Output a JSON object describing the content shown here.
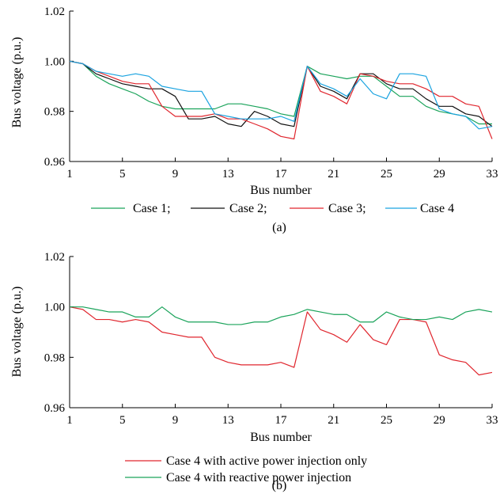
{
  "chart_data": [
    {
      "type": "line",
      "panel_label": "(a)",
      "xlabel": "Bus number",
      "ylabel": "Bus voltage (p.u.)",
      "xlim": [
        1,
        33
      ],
      "ylim": [
        0.96,
        1.02
      ],
      "xticks": [
        1,
        5,
        9,
        13,
        17,
        21,
        25,
        29,
        33
      ],
      "yticks": [
        0.96,
        0.98,
        1.0,
        1.02
      ],
      "ytick_labels": [
        "0.96",
        "0.98",
        "1.00",
        "1.02"
      ],
      "grid": false,
      "legend_position": "bottom",
      "x": [
        1,
        2,
        3,
        4,
        5,
        6,
        7,
        8,
        9,
        10,
        11,
        12,
        13,
        14,
        15,
        16,
        17,
        18,
        19,
        20,
        21,
        22,
        23,
        24,
        25,
        26,
        27,
        28,
        29,
        30,
        31,
        32,
        33
      ],
      "series": [
        {
          "name": "Case 1;",
          "color": "#1aa35a",
          "values": [
            1.0,
            0.999,
            0.994,
            0.991,
            0.989,
            0.987,
            0.984,
            0.982,
            0.981,
            0.981,
            0.981,
            0.981,
            0.983,
            0.983,
            0.982,
            0.981,
            0.979,
            0.978,
            0.998,
            0.995,
            0.994,
            0.993,
            0.994,
            0.994,
            0.99,
            0.986,
            0.986,
            0.982,
            0.98,
            0.979,
            0.978,
            0.975,
            0.975
          ]
        },
        {
          "name": "Case 2;",
          "color": "#111111",
          "values": [
            1.0,
            0.999,
            0.995,
            0.993,
            0.991,
            0.99,
            0.989,
            0.989,
            0.986,
            0.977,
            0.977,
            0.978,
            0.975,
            0.974,
            0.98,
            0.978,
            0.975,
            0.974,
            0.998,
            0.99,
            0.988,
            0.985,
            0.995,
            0.995,
            0.991,
            0.989,
            0.989,
            0.985,
            0.982,
            0.982,
            0.979,
            0.978,
            0.974
          ]
        },
        {
          "name": "Case 3;",
          "color": "#e0262e",
          "values": [
            1.0,
            0.999,
            0.996,
            0.994,
            0.992,
            0.991,
            0.991,
            0.982,
            0.978,
            0.978,
            0.978,
            0.979,
            0.977,
            0.977,
            0.975,
            0.973,
            0.97,
            0.969,
            0.998,
            0.988,
            0.986,
            0.983,
            0.995,
            0.994,
            0.992,
            0.991,
            0.991,
            0.989,
            0.986,
            0.986,
            0.983,
            0.982,
            0.969
          ]
        },
        {
          "name": "Case 4",
          "color": "#1aa3e0",
          "values": [
            1.0,
            0.999,
            0.996,
            0.995,
            0.994,
            0.995,
            0.994,
            0.99,
            0.989,
            0.988,
            0.988,
            0.979,
            0.978,
            0.977,
            0.977,
            0.977,
            0.978,
            0.976,
            0.998,
            0.991,
            0.989,
            0.986,
            0.993,
            0.987,
            0.985,
            0.995,
            0.995,
            0.994,
            0.981,
            0.979,
            0.978,
            0.973,
            0.974
          ]
        }
      ]
    },
    {
      "type": "line",
      "panel_label": "(b)",
      "xlabel": "Bus number",
      "ylabel": "Bus voltage (p.u.)",
      "xlim": [
        1,
        33
      ],
      "ylim": [
        0.96,
        1.02
      ],
      "xticks": [
        1,
        5,
        9,
        13,
        17,
        21,
        25,
        29,
        33
      ],
      "yticks": [
        0.96,
        0.98,
        1.0,
        1.02
      ],
      "ytick_labels": [
        "0.96",
        "0.98",
        "1.00",
        "1.02"
      ],
      "grid": false,
      "legend_position": "bottom",
      "x": [
        1,
        2,
        3,
        4,
        5,
        6,
        7,
        8,
        9,
        10,
        11,
        12,
        13,
        14,
        15,
        16,
        17,
        18,
        19,
        20,
        21,
        22,
        23,
        24,
        25,
        26,
        27,
        28,
        29,
        30,
        31,
        32,
        33
      ],
      "series": [
        {
          "name": "Case 4 with active power injection only",
          "color": "#e0262e",
          "values": [
            1.0,
            0.999,
            0.995,
            0.995,
            0.994,
            0.995,
            0.994,
            0.99,
            0.989,
            0.988,
            0.988,
            0.98,
            0.978,
            0.977,
            0.977,
            0.977,
            0.978,
            0.976,
            0.998,
            0.991,
            0.989,
            0.986,
            0.993,
            0.987,
            0.985,
            0.995,
            0.995,
            0.994,
            0.981,
            0.979,
            0.978,
            0.973,
            0.974
          ]
        },
        {
          "name": "Case 4 with reactive power injection",
          "color": "#1aa35a",
          "values": [
            1.0,
            1.0,
            0.999,
            0.998,
            0.998,
            0.996,
            0.996,
            1.0,
            0.996,
            0.994,
            0.994,
            0.994,
            0.993,
            0.993,
            0.994,
            0.994,
            0.996,
            0.997,
            0.999,
            0.998,
            0.997,
            0.997,
            0.994,
            0.994,
            0.998,
            0.996,
            0.995,
            0.995,
            0.996,
            0.995,
            0.998,
            0.999,
            0.998
          ]
        }
      ]
    }
  ]
}
